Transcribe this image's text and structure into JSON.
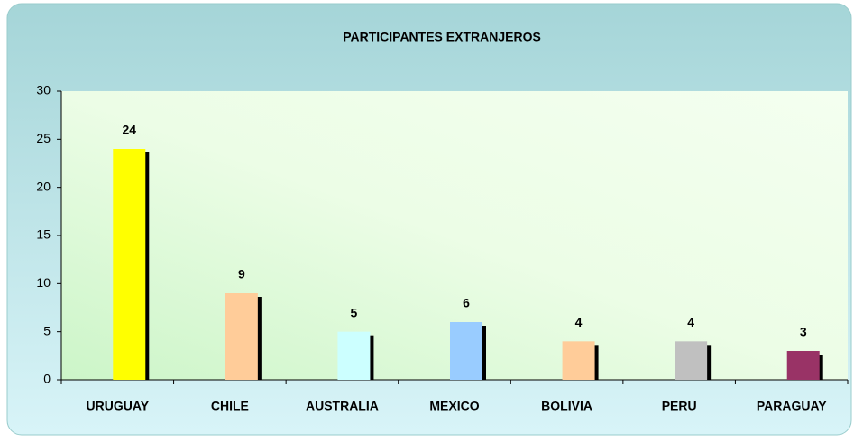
{
  "chart_data": {
    "type": "bar",
    "title": "PARTICIPANTES EXTRANJEROS",
    "categories": [
      "URUGUAY",
      "CHILE",
      "AUSTRALIA",
      "MEXICO",
      "BOLIVIA",
      "PERU",
      "PARAGUAY"
    ],
    "values": [
      24,
      9,
      5,
      6,
      4,
      4,
      3
    ],
    "colors": [
      "#ffff00",
      "#ffcc99",
      "#ccffff",
      "#99ccff",
      "#ffcc99",
      "#c0c0c0",
      "#993366"
    ],
    "ylim": [
      0,
      30
    ],
    "yticks": [
      0,
      5,
      10,
      15,
      20,
      25,
      30
    ],
    "grid": false
  }
}
